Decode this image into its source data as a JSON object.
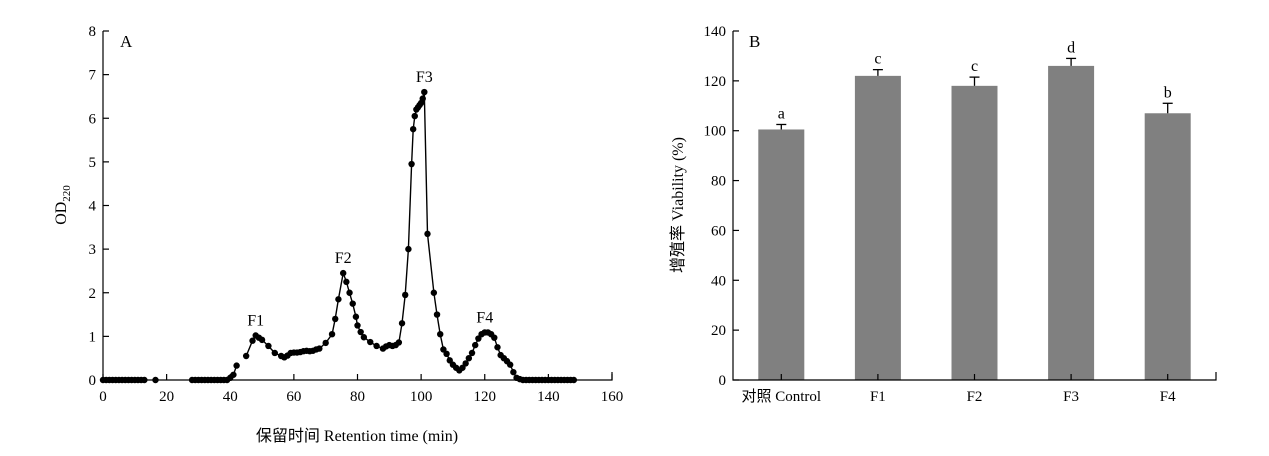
{
  "charts": {
    "a": {
      "type": "line",
      "panel_label": "A",
      "xlabel": "保留时间 Retention time (min)",
      "ylabel_main": "OD",
      "ylabel_sub": "220",
      "xlim": [
        0,
        160
      ],
      "ylim": [
        0,
        8
      ],
      "xticks": [
        0,
        20,
        40,
        60,
        80,
        100,
        120,
        140,
        160
      ],
      "yticks": [
        0,
        1,
        2,
        3,
        4,
        5,
        6,
        7,
        8
      ],
      "peak_labels": [
        {
          "text": "F1",
          "x": 48,
          "y": 1.02
        },
        {
          "text": "F2",
          "x": 75.5,
          "y": 2.45
        },
        {
          "text": "F3",
          "x": 101,
          "y": 6.6
        },
        {
          "text": "F4",
          "x": 120,
          "y": 1.09
        }
      ],
      "points": [
        [
          0,
          0
        ],
        [
          1,
          0
        ],
        [
          2,
          0
        ],
        [
          3,
          0
        ],
        [
          4,
          0
        ],
        [
          5,
          0
        ],
        [
          6,
          0
        ],
        [
          7,
          0
        ],
        [
          8,
          0
        ],
        [
          9,
          0
        ],
        [
          10,
          0
        ],
        [
          11,
          0
        ],
        [
          12,
          0
        ],
        [
          13,
          0
        ],
        [
          16.5,
          0
        ],
        [
          28,
          0
        ],
        [
          29,
          0
        ],
        [
          30,
          0
        ],
        [
          31,
          0
        ],
        [
          32,
          0
        ],
        [
          33,
          0
        ],
        [
          34,
          0
        ],
        [
          35,
          0
        ],
        [
          36,
          0
        ],
        [
          37,
          0
        ],
        [
          38,
          0
        ],
        [
          39,
          0
        ],
        [
          40,
          0.05
        ],
        [
          41,
          0.12
        ],
        [
          42,
          0.33
        ],
        [
          45,
          0.55
        ],
        [
          47,
          0.9
        ],
        [
          48,
          1.02
        ],
        [
          49,
          0.97
        ],
        [
          50,
          0.92
        ],
        [
          52,
          0.78
        ],
        [
          54,
          0.62
        ],
        [
          56,
          0.55
        ],
        [
          57,
          0.52
        ],
        [
          58,
          0.56
        ],
        [
          59,
          0.62
        ],
        [
          60,
          0.63
        ],
        [
          61,
          0.63
        ],
        [
          62,
          0.64
        ],
        [
          63,
          0.66
        ],
        [
          64,
          0.67
        ],
        [
          65,
          0.66
        ],
        [
          66,
          0.67
        ],
        [
          67,
          0.7
        ],
        [
          68,
          0.72
        ],
        [
          70,
          0.85
        ],
        [
          72,
          1.05
        ],
        [
          73,
          1.4
        ],
        [
          74,
          1.85
        ],
        [
          75.5,
          2.45
        ],
        [
          76.5,
          2.25
        ],
        [
          77.5,
          2.0
        ],
        [
          78.5,
          1.75
        ],
        [
          79.5,
          1.45
        ],
        [
          80,
          1.25
        ],
        [
          81,
          1.1
        ],
        [
          82,
          0.98
        ],
        [
          84,
          0.87
        ],
        [
          86,
          0.78
        ],
        [
          88,
          0.72
        ],
        [
          89,
          0.77
        ],
        [
          90,
          0.8
        ],
        [
          91,
          0.78
        ],
        [
          92,
          0.8
        ],
        [
          93,
          0.86
        ],
        [
          94,
          1.3
        ],
        [
          95,
          1.95
        ],
        [
          96,
          3.0
        ],
        [
          97,
          4.95
        ],
        [
          97.5,
          5.75
        ],
        [
          98,
          6.05
        ],
        [
          98.5,
          6.2
        ],
        [
          99,
          6.25
        ],
        [
          99.5,
          6.3
        ],
        [
          100,
          6.35
        ],
        [
          100.5,
          6.45
        ],
        [
          101,
          6.6
        ],
        [
          102,
          3.35
        ],
        [
          104,
          2.0
        ],
        [
          105,
          1.5
        ],
        [
          106,
          1.05
        ],
        [
          107,
          0.7
        ],
        [
          108,
          0.6
        ],
        [
          109,
          0.45
        ],
        [
          110,
          0.35
        ],
        [
          111,
          0.28
        ],
        [
          112,
          0.22
        ],
        [
          113,
          0.28
        ],
        [
          114,
          0.38
        ],
        [
          115,
          0.5
        ],
        [
          116,
          0.62
        ],
        [
          117,
          0.8
        ],
        [
          118,
          0.95
        ],
        [
          119,
          1.05
        ],
        [
          120,
          1.09
        ],
        [
          121,
          1.09
        ],
        [
          122,
          1.05
        ],
        [
          123,
          0.97
        ],
        [
          124,
          0.75
        ],
        [
          125,
          0.57
        ],
        [
          126,
          0.5
        ],
        [
          127,
          0.43
        ],
        [
          128,
          0.35
        ],
        [
          129,
          0.18
        ],
        [
          130,
          0.05
        ],
        [
          131,
          0.02
        ],
        [
          132,
          0
        ],
        [
          133,
          0
        ],
        [
          134,
          0
        ],
        [
          135,
          0
        ],
        [
          136,
          0
        ],
        [
          137,
          0
        ],
        [
          138,
          0
        ],
        [
          139,
          0
        ],
        [
          140,
          0
        ],
        [
          141,
          0
        ],
        [
          142,
          0
        ],
        [
          143,
          0
        ],
        [
          144,
          0
        ],
        [
          145,
          0
        ],
        [
          146,
          0
        ],
        [
          147,
          0
        ],
        [
          148,
          0
        ]
      ]
    },
    "b": {
      "type": "bar",
      "panel_label": "B",
      "ylabel": "增殖率 Viability (%)",
      "ylim": [
        0,
        140
      ],
      "yticks": [
        0,
        20,
        40,
        60,
        80,
        100,
        120,
        140
      ],
      "categories": [
        "对照 Control",
        "F1",
        "F2",
        "F3",
        "F4"
      ],
      "values": [
        100.5,
        122,
        118,
        126,
        107
      ],
      "errors": [
        2,
        2.5,
        3.5,
        3,
        4
      ],
      "significance": [
        "a",
        "c",
        "c",
        "d",
        "b"
      ],
      "bar_color": "#808080",
      "ylabel_color": "#b8860b"
    }
  }
}
